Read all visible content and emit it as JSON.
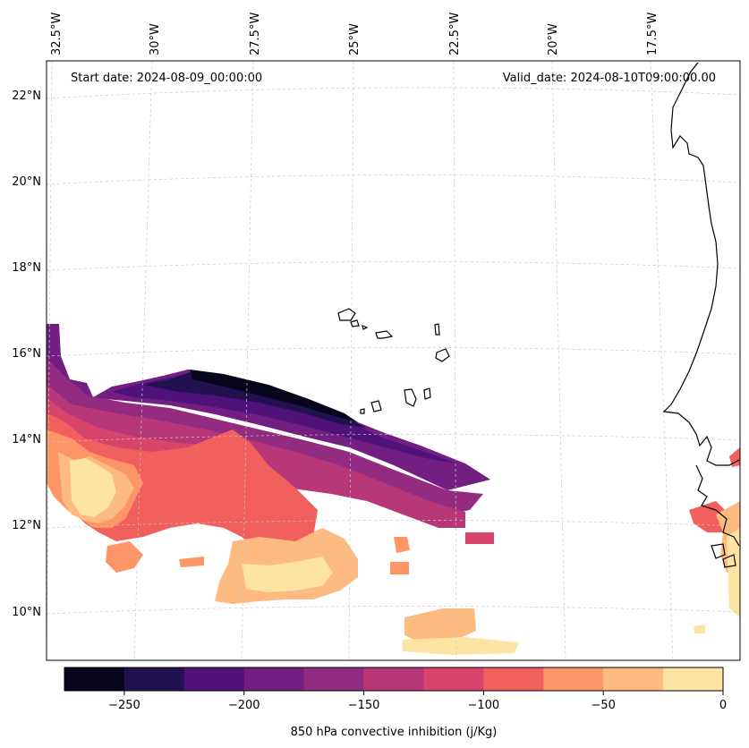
{
  "header": {
    "start_date": "Start date: 2024-08-09_00:00:00",
    "valid_date": "Valid_date: 2024-08-10T09:00:00.00"
  },
  "axes": {
    "lon_labels": [
      "32.5°W",
      "30°W",
      "27.5°W",
      "25°W",
      "22.5°W",
      "20°W",
      "17.5°W"
    ],
    "lat_labels": [
      "22°N",
      "20°N",
      "18°N",
      "16°N",
      "14°N",
      "12°N",
      "10°N"
    ]
  },
  "colorbar": {
    "label": "850 hPa convective inhibition (j/Kg)",
    "tick_labels": [
      "−250",
      "−200",
      "−150",
      "−100",
      "−50",
      "0"
    ],
    "levels": [
      -275,
      -250,
      -225,
      -200,
      -175,
      -150,
      -125,
      -100,
      -75,
      -50,
      -25,
      0
    ],
    "colors": [
      "#07051b",
      "#221150",
      "#4f127b",
      "#721f81",
      "#932b80",
      "#b73779",
      "#d8456c",
      "#f1605d",
      "#fd9567",
      "#febb81",
      "#fde4a5"
    ]
  },
  "chart_data": {
    "type": "contourf-map",
    "variable": "850 hPa convective inhibition",
    "units": "j/Kg",
    "start_date": "2024-08-09_00:00:00",
    "valid_date": "2024-08-10T09:00:00.00",
    "lon_range": [
      -33,
      -16
    ],
    "lat_range": [
      9,
      23
    ],
    "lon_ticks": [
      -32.5,
      -30,
      -27.5,
      -25,
      -22.5,
      -20,
      -17.5
    ],
    "lat_ticks": [
      22,
      20,
      18,
      16,
      14,
      12,
      10
    ],
    "colorbar_ticks": [
      -250,
      -200,
      -150,
      -100,
      -50,
      0
    ],
    "contour_levels": [
      -275,
      -250,
      -225,
      -200,
      -175,
      -150,
      -125,
      -100,
      -75,
      -50,
      -25,
      0
    ]
  }
}
